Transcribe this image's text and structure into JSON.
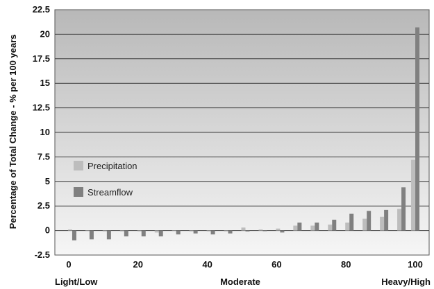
{
  "chart_data": {
    "type": "bar",
    "ylabel": "Percentage of Total Change - % per 100 years",
    "xlabel": "",
    "ylim": [
      -2.5,
      22.5
    ],
    "yticks": [
      "-2.5",
      "0",
      "2.5",
      "5",
      "7.5",
      "10",
      "12.5",
      "15",
      "17.5",
      "20",
      "22.5"
    ],
    "xlim": [
      -4,
      104
    ],
    "xticks": [
      "0",
      "20",
      "40",
      "60",
      "80",
      "100"
    ],
    "x_category_labels": [
      "Light/Low",
      "Moderate",
      "Heavy/High"
    ],
    "grid": true,
    "legend_position": "left-middle",
    "series": [
      {
        "name": "Precipitation",
        "color": "#bdbdbd",
        "x": [
          1,
          6,
          11,
          16,
          21,
          26,
          31,
          36,
          41,
          46,
          51,
          56,
          61,
          66,
          71,
          76,
          81,
          86,
          91,
          96
        ],
        "values": [
          0.1,
          0.0,
          -0.1,
          -0.1,
          -0.1,
          -0.2,
          0.0,
          -0.1,
          -0.1,
          -0.1,
          0.3,
          0.1,
          0.2,
          0.5,
          0.5,
          0.6,
          0.8,
          1.2,
          1.4,
          2.2
        ]
      },
      {
        "name": "Streamflow",
        "color": "#808080",
        "x": [
          1,
          6,
          11,
          16,
          21,
          26,
          31,
          36,
          41,
          46,
          51,
          56,
          61,
          66,
          71,
          76,
          81,
          86,
          91,
          96
        ],
        "values": [
          -1.0,
          -0.9,
          -0.9,
          -0.6,
          -0.6,
          -0.6,
          -0.4,
          -0.3,
          -0.4,
          -0.3,
          -0.1,
          0.0,
          -0.2,
          0.8,
          0.8,
          1.1,
          1.7,
          2.0,
          2.1,
          4.4
        ]
      }
    ],
    "extra_bars": [
      {
        "x": 100,
        "precipitation": 7.2,
        "streamflow": 20.7
      }
    ]
  },
  "colors": {
    "plot_top": "#b8b8b8",
    "plot_bottom": "#f6f6f6",
    "grid": "#3a3a3a",
    "precipitation": "#bdbdbd",
    "streamflow": "#808080"
  }
}
